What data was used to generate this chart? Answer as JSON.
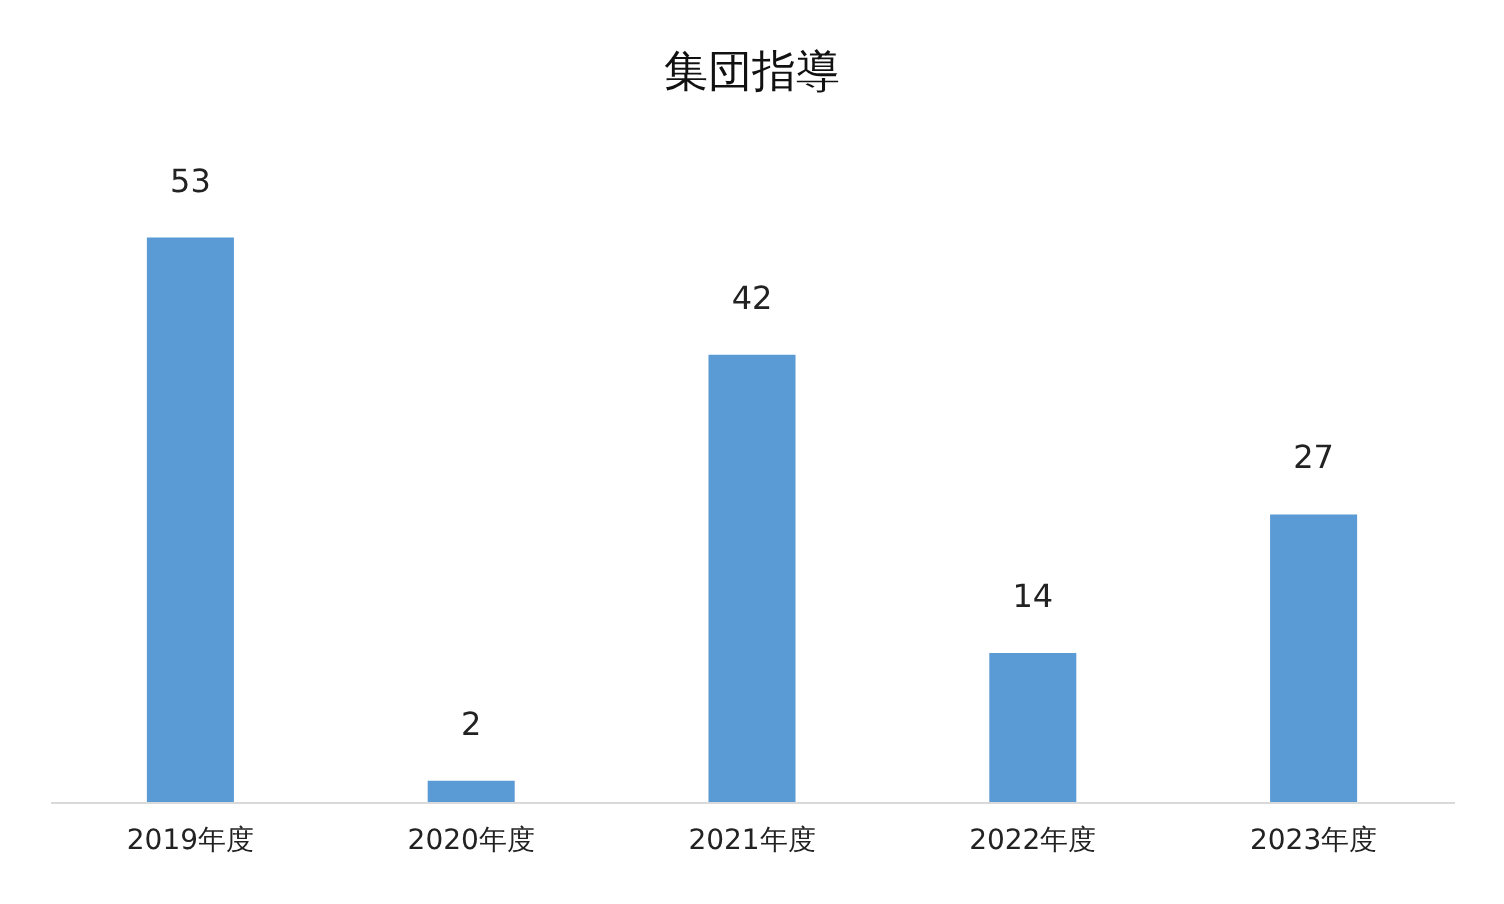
{
  "chart_data": {
    "type": "bar",
    "title": "集団指導",
    "categories": [
      "2019年度",
      "2020年度",
      "2021年度",
      "2022年度",
      "2023年度"
    ],
    "values": [
      53,
      2,
      42,
      14,
      27
    ],
    "color": "#5b9bd5",
    "data_labels": true
  }
}
